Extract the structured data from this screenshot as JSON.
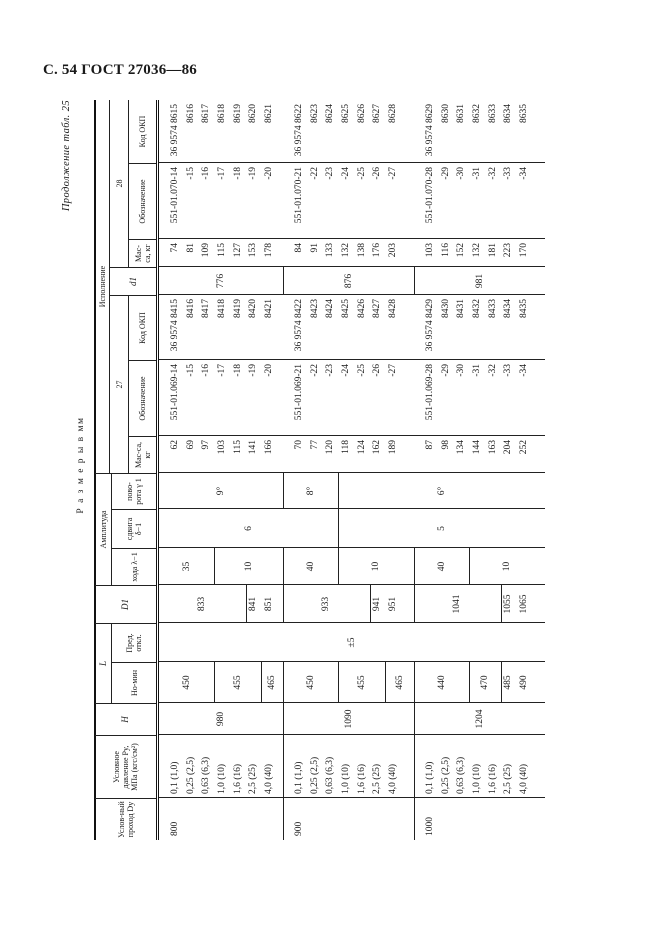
{
  "page_header": "С. 54 ГОСТ 27036—86",
  "continuation": "Продолжение табл. 25",
  "units_caption": "Р а з м е р ы  в  мм",
  "headers": {
    "dy": "Услов-ный проход Dy",
    "p": "Условное давление Py, МПа (кгс/см²)",
    "h": "H",
    "l": "L",
    "l_nom": "Но-мин",
    "l_pred": "Пред. откл.",
    "d1_big": "D1",
    "amplitude": "Амплитуда",
    "hoda": "хода λ−1",
    "sdviga": "сдвига δ−1",
    "povorota": "пово-рота γ 1",
    "ispolnenie": "Исполнение",
    "v27": "27",
    "v28": "28",
    "d1_small": "d1",
    "mass": "Мас-са, кг",
    "oboznachenie": "Обозначение",
    "kod": "Код ОКП"
  },
  "columns": {
    "dy": [
      {
        "v": [
          "800"
        ],
        "rows": 7
      },
      {
        "v": [
          "900"
        ],
        "rows": 7
      },
      {
        "v": [
          "1000"
        ],
        "rows": 7
      }
    ],
    "p": [
      "0,1 (1,0)",
      "0,25 (2,5)",
      "0,63 (6,3)",
      "1,0 (10)",
      "1,6 (16)",
      "2,5 (25)",
      "4,0 (40)",
      "0,1 (1,0)",
      "0,25 (2,5)",
      "0,63 (6,3)",
      "1,0 (10)",
      "1,6 (16)",
      "2,5 (25)",
      "4,0 (40)",
      "0,1 (1,0)",
      "0,25 (2,5)",
      "0,63 (6,3)",
      "1,0 (10)",
      "1,6 (16)",
      "2,5 (25)",
      "4,0 (40)"
    ],
    "h": [
      {
        "v": [
          "980"
        ],
        "rows": 7
      },
      {
        "v": [
          "1090"
        ],
        "rows": 7
      },
      {
        "v": [
          "1204"
        ],
        "rows": 7
      }
    ],
    "l_nom": [
      {
        "v": [
          "450"
        ],
        "rows": 3
      },
      {
        "v": [
          "455"
        ],
        "rows": 3
      },
      {
        "v": [
          "465"
        ],
        "rows": 1
      },
      {
        "v": [
          "450"
        ],
        "rows": 3
      },
      {
        "v": [
          "455"
        ],
        "rows": 3
      },
      {
        "v": [
          "465"
        ],
        "rows": 1
      },
      {
        "v": [
          "440"
        ],
        "rows": 3
      },
      {
        "v": [
          "470"
        ],
        "rows": 2
      },
      {
        "v": [
          "485",
          "490"
        ],
        "rows": 2
      }
    ],
    "l_pred": [
      {
        "v": [
          "±5"
        ],
        "rows": 21
      }
    ],
    "d1_big": [
      {
        "v": [
          "833"
        ],
        "rows": 5
      },
      {
        "v": [
          "841",
          "851"
        ],
        "rows": 2
      },
      {
        "v": [
          "933"
        ],
        "rows": 5
      },
      {
        "v": [
          "941",
          "951"
        ],
        "rows": 2
      },
      {
        "v": [
          "1041"
        ],
        "rows": 5
      },
      {
        "v": [
          "1055",
          "1065"
        ],
        "rows": 2
      }
    ],
    "hoda": [
      {
        "v": [
          "35"
        ],
        "rows": 3
      },
      {
        "v": [
          "10"
        ],
        "rows": 4
      },
      {
        "v": [
          "40"
        ],
        "rows": 3
      },
      {
        "v": [
          "10"
        ],
        "rows": 4
      },
      {
        "v": [
          "40"
        ],
        "rows": 3
      },
      {
        "v": [
          "10"
        ],
        "rows": 4
      }
    ],
    "sdviga": [
      {
        "v": [
          "6"
        ],
        "rows": 10
      },
      {
        "v": [
          "5"
        ],
        "rows": 11
      }
    ],
    "povorota": [
      {
        "v": [
          "9°"
        ],
        "rows": 7
      },
      {
        "v": [
          "8°"
        ],
        "rows": 3
      },
      {
        "v": [
          "6°"
        ],
        "rows": 11
      }
    ],
    "mass27": [
      "62",
      "69",
      "97",
      "103",
      "115",
      "141",
      "166",
      "70",
      "77",
      "120",
      "118",
      "124",
      "162",
      "189",
      "87",
      "98",
      "134",
      "144",
      "163",
      "204",
      "252"
    ],
    "obozn27": [
      "551-01.069-14",
      "-15",
      "-16",
      "-17",
      "-18",
      "-19",
      "-20",
      "551-01.069-21",
      "-22",
      "-23",
      "-24",
      "-25",
      "-26",
      "-27",
      "551-01.069-28",
      "-29",
      "-30",
      "-31",
      "-32",
      "-33",
      "-34"
    ],
    "kod27": [
      "36 9574 8415",
      "8416",
      "8417",
      "8418",
      "8419",
      "8420",
      "8421",
      "36 9574 8422",
      "8423",
      "8424",
      "8425",
      "8426",
      "8427",
      "8428",
      "36 9574 8429",
      "8430",
      "8431",
      "8432",
      "8433",
      "8434",
      "8435"
    ],
    "d1_small": [
      {
        "v": [
          "776"
        ],
        "rows": 7
      },
      {
        "v": [
          "876"
        ],
        "rows": 7
      },
      {
        "v": [
          "981"
        ],
        "rows": 7
      }
    ],
    "mass28": [
      "74",
      "81",
      "109",
      "115",
      "127",
      "153",
      "178",
      "84",
      "91",
      "133",
      "132",
      "138",
      "176",
      "203",
      "103",
      "116",
      "152",
      "132",
      "181",
      "223",
      "170"
    ],
    "obozn28": [
      "551-01.070-14",
      "-15",
      "-16",
      "-17",
      "-18",
      "-19",
      "-20",
      "551-01.070-21",
      "-22",
      "-23",
      "-24",
      "-25",
      "-26",
      "-27",
      "551-01.070-28",
      "-29",
      "-30",
      "-31",
      "-32",
      "-33",
      "-34"
    ],
    "kod28": [
      "36 9574 8615",
      "8616",
      "8617",
      "8618",
      "8619",
      "8620",
      "8621",
      "36 9574 8622",
      "8623",
      "8624",
      "8625",
      "8626",
      "8627",
      "8628",
      "36 9574 8629",
      "8630",
      "8631",
      "8632",
      "8633",
      "8634",
      "8635"
    ]
  }
}
